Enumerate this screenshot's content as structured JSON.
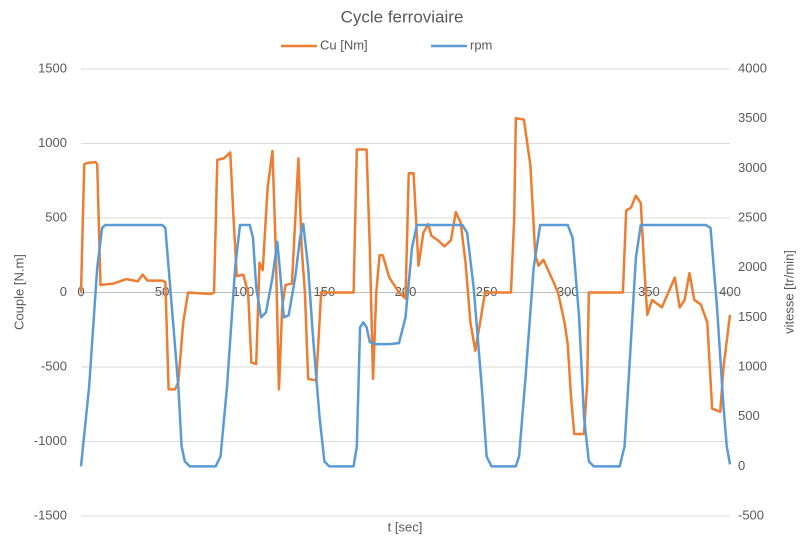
{
  "chart_data": {
    "type": "line",
    "title": "Cycle ferroviaire",
    "x_label": "t [sec]",
    "y_label": "Couple [N.m]",
    "y2_label": "vitesse [tr/min]",
    "xlim": [
      0,
      400
    ],
    "xticks": [
      0,
      50,
      100,
      150,
      200,
      250,
      300,
      350,
      400
    ],
    "ylim": [
      -1500,
      1500
    ],
    "yticks": [
      -1500,
      -1000,
      -500,
      0,
      500,
      1000,
      1500
    ],
    "y2lim": [
      -500,
      4000
    ],
    "y2ticks": [
      -500,
      0,
      500,
      1000,
      1500,
      2000,
      2500,
      3000,
      3500,
      4000
    ],
    "grid": true,
    "legend": "top",
    "series": [
      {
        "name": "Cu [Nm]",
        "color": "#ed7d31",
        "x": [
          0,
          2,
          4,
          9,
          10,
          12,
          20,
          28,
          35,
          38,
          41,
          50,
          52,
          54,
          58,
          60,
          63,
          66,
          80,
          82,
          84,
          88,
          92,
          94,
          96,
          100,
          103,
          105,
          108,
          110,
          112,
          115,
          118,
          120,
          122,
          124,
          126,
          130,
          134,
          136,
          138,
          140,
          145,
          148,
          160,
          168,
          170,
          176,
          178,
          180,
          182,
          184,
          186,
          190,
          196,
          200,
          202,
          205,
          208,
          211,
          214,
          216,
          220,
          224,
          228,
          231,
          234,
          237,
          240,
          243,
          246,
          249,
          265,
          267,
          268,
          273,
          277,
          280,
          282,
          285,
          290,
          294,
          298,
          300,
          302,
          304,
          310,
          312,
          313,
          330,
          334,
          336,
          339,
          342,
          345,
          347,
          349,
          352,
          358,
          362,
          366,
          369,
          372,
          375,
          378,
          382,
          386,
          389,
          394,
          396,
          400
        ],
        "values": [
          0,
          860,
          870,
          875,
          860,
          50,
          60,
          90,
          75,
          120,
          80,
          80,
          70,
          -650,
          -650,
          -600,
          -200,
          0,
          -10,
          0,
          890,
          900,
          940,
          500,
          110,
          120,
          0,
          -470,
          -480,
          200,
          150,
          700,
          950,
          300,
          -650,
          -100,
          50,
          60,
          900,
          300,
          0,
          -580,
          -590,
          0,
          0,
          0,
          960,
          960,
          300,
          -580,
          0,
          250,
          250,
          100,
          0,
          -40,
          800,
          800,
          180,
          400,
          460,
          380,
          350,
          310,
          350,
          540,
          470,
          200,
          -200,
          -390,
          -200,
          0,
          0,
          500,
          1170,
          1160,
          850,
          250,
          180,
          220,
          100,
          0,
          -200,
          -350,
          -700,
          -950,
          -950,
          -600,
          0,
          0,
          0,
          550,
          570,
          650,
          600,
          200,
          -150,
          -50,
          -100,
          0,
          100,
          -100,
          -50,
          130,
          -50,
          -80,
          -200,
          -780,
          -800,
          -500,
          -150
        ]
      },
      {
        "name": "rpm",
        "color": "#5b9bd5",
        "axis": "y2",
        "x": [
          0,
          5,
          10,
          13,
          15,
          50,
          52,
          55,
          60,
          62,
          64,
          67,
          83,
          86,
          90,
          95,
          98,
          104,
          106,
          108,
          111,
          114,
          118,
          121,
          123,
          125,
          128,
          132,
          135,
          137,
          140,
          143,
          147,
          150,
          153,
          168,
          170,
          172,
          174,
          176,
          178,
          182,
          190,
          196,
          200,
          204,
          207,
          235,
          238,
          242,
          247,
          250,
          253,
          268,
          270,
          274,
          279,
          283,
          300,
          303,
          307,
          310,
          313,
          316,
          332,
          335,
          338,
          342,
          345,
          385,
          388,
          392,
          396,
          398,
          400
        ],
        "values": [
          0,
          800,
          2000,
          2400,
          2430,
          2430,
          2400,
          1800,
          800,
          200,
          50,
          0,
          0,
          100,
          800,
          2000,
          2430,
          2430,
          2300,
          1800,
          1500,
          1550,
          1900,
          2260,
          1900,
          1500,
          1520,
          1900,
          2300,
          2440,
          2000,
          1300,
          500,
          50,
          0,
          0,
          200,
          1400,
          1450,
          1400,
          1250,
          1230,
          1230,
          1240,
          1500,
          2200,
          2430,
          2430,
          2350,
          1800,
          800,
          100,
          0,
          0,
          100,
          900,
          2000,
          2430,
          2430,
          2300,
          1500,
          500,
          50,
          0,
          0,
          200,
          1000,
          2100,
          2430,
          2430,
          2400,
          1600,
          600,
          200,
          20
        ]
      }
    ]
  }
}
